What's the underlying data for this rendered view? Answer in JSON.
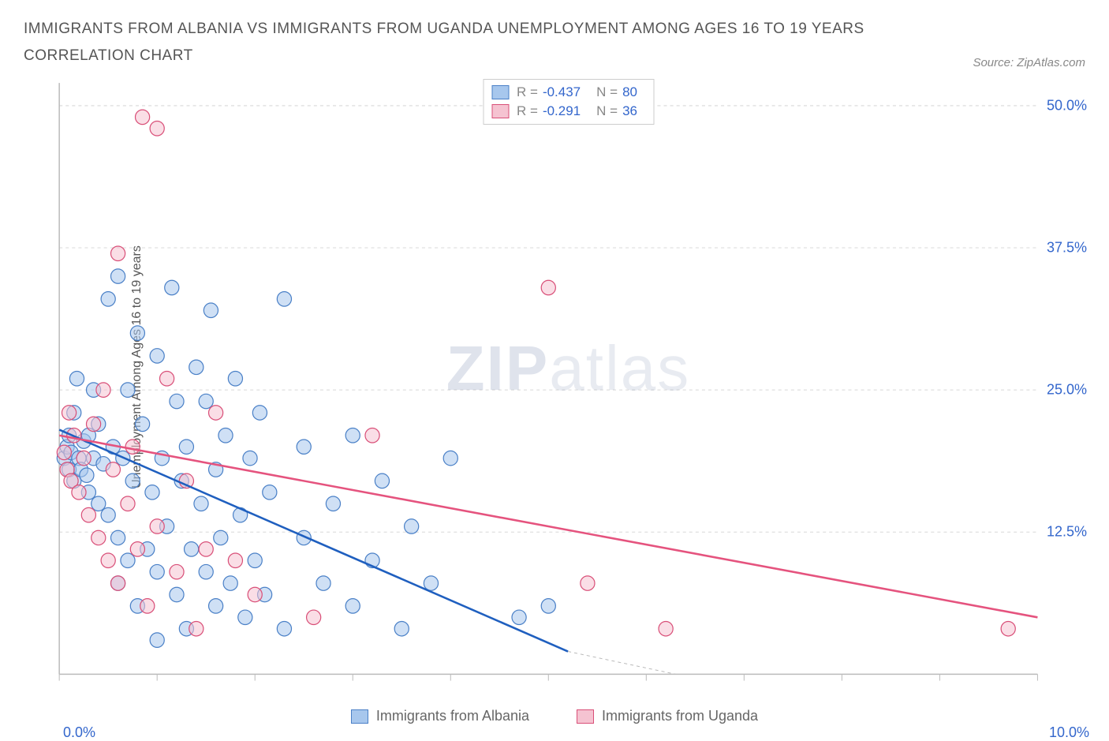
{
  "title": "IMMIGRANTS FROM ALBANIA VS IMMIGRANTS FROM UGANDA UNEMPLOYMENT AMONG AGES 16 TO 19 YEARS CORRELATION CHART",
  "source": "Source: ZipAtlas.com",
  "ylabel": "Unemployment Among Ages 16 to 19 years",
  "watermark_bold": "ZIP",
  "watermark_light": "atlas",
  "chart": {
    "type": "scatter",
    "xlim": [
      0,
      10
    ],
    "ylim": [
      0,
      52
    ],
    "x_ticks": [
      0,
      1,
      2,
      3,
      4,
      5,
      6,
      7,
      8,
      9,
      10
    ],
    "x_tick_labels_shown": {
      "0": "0.0%",
      "10": "10.0%"
    },
    "y_gridlines": [
      12.5,
      25,
      37.5,
      50
    ],
    "y_tick_labels": {
      "12.5": "12.5%",
      "25": "25.0%",
      "37.5": "37.5%",
      "50": "50.0%"
    },
    "grid_color": "#d8d8d8",
    "grid_dash": "4,4",
    "axis_color": "#bbbbbb",
    "background_color": "#ffffff",
    "marker_radius": 9,
    "marker_opacity": 0.55,
    "series": [
      {
        "name": "Immigrants from Albania",
        "color_fill": "#a7c7ed",
        "color_stroke": "#4a80c7",
        "line_color": "#1f5fbf",
        "line_width": 2.5,
        "R": "-0.437",
        "N": "80",
        "trend": {
          "x1": 0,
          "y1": 21.5,
          "x2": 5.2,
          "y2": 2.0
        },
        "trend_ext": {
          "x1": 5.2,
          "y1": 2.0,
          "x2": 6.3,
          "y2": -2.0
        },
        "points": [
          [
            0.05,
            19
          ],
          [
            0.08,
            20
          ],
          [
            0.1,
            18
          ],
          [
            0.1,
            21
          ],
          [
            0.12,
            19.5
          ],
          [
            0.15,
            23
          ],
          [
            0.15,
            17
          ],
          [
            0.18,
            26
          ],
          [
            0.2,
            19
          ],
          [
            0.22,
            18
          ],
          [
            0.25,
            20.5
          ],
          [
            0.28,
            17.5
          ],
          [
            0.3,
            21
          ],
          [
            0.3,
            16
          ],
          [
            0.35,
            25
          ],
          [
            0.35,
            19
          ],
          [
            0.4,
            15
          ],
          [
            0.4,
            22
          ],
          [
            0.45,
            18.5
          ],
          [
            0.5,
            33
          ],
          [
            0.5,
            14
          ],
          [
            0.55,
            20
          ],
          [
            0.6,
            35
          ],
          [
            0.6,
            12
          ],
          [
            0.6,
            8
          ],
          [
            0.65,
            19
          ],
          [
            0.7,
            25
          ],
          [
            0.7,
            10
          ],
          [
            0.75,
            17
          ],
          [
            0.8,
            30
          ],
          [
            0.8,
            6
          ],
          [
            0.85,
            22
          ],
          [
            0.9,
            11
          ],
          [
            0.95,
            16
          ],
          [
            1.0,
            28
          ],
          [
            1.0,
            9
          ],
          [
            1.0,
            3
          ],
          [
            1.05,
            19
          ],
          [
            1.1,
            13
          ],
          [
            1.15,
            34
          ],
          [
            1.2,
            7
          ],
          [
            1.2,
            24
          ],
          [
            1.25,
            17
          ],
          [
            1.3,
            4
          ],
          [
            1.3,
            20
          ],
          [
            1.35,
            11
          ],
          [
            1.4,
            27
          ],
          [
            1.45,
            15
          ],
          [
            1.5,
            9
          ],
          [
            1.5,
            24
          ],
          [
            1.55,
            32
          ],
          [
            1.6,
            6
          ],
          [
            1.6,
            18
          ],
          [
            1.65,
            12
          ],
          [
            1.7,
            21
          ],
          [
            1.75,
            8
          ],
          [
            1.8,
            26
          ],
          [
            1.85,
            14
          ],
          [
            1.9,
            5
          ],
          [
            1.95,
            19
          ],
          [
            2.0,
            10
          ],
          [
            2.05,
            23
          ],
          [
            2.1,
            7
          ],
          [
            2.15,
            16
          ],
          [
            2.3,
            33
          ],
          [
            2.3,
            4
          ],
          [
            2.5,
            12
          ],
          [
            2.5,
            20
          ],
          [
            2.7,
            8
          ],
          [
            2.8,
            15
          ],
          [
            3.0,
            6
          ],
          [
            3.0,
            21
          ],
          [
            3.2,
            10
          ],
          [
            3.3,
            17
          ],
          [
            3.5,
            4
          ],
          [
            3.6,
            13
          ],
          [
            3.8,
            8
          ],
          [
            4.0,
            19
          ],
          [
            4.7,
            5
          ],
          [
            5.0,
            6
          ]
        ]
      },
      {
        "name": "Immigrants from Uganda",
        "color_fill": "#f5c3d1",
        "color_stroke": "#d94f78",
        "line_color": "#e5537e",
        "line_width": 2.5,
        "R": "-0.291",
        "N": "36",
        "trend": {
          "x1": 0,
          "y1": 21.0,
          "x2": 10,
          "y2": 5.0
        },
        "points": [
          [
            0.05,
            19.5
          ],
          [
            0.08,
            18
          ],
          [
            0.1,
            23
          ],
          [
            0.12,
            17
          ],
          [
            0.15,
            21
          ],
          [
            0.2,
            16
          ],
          [
            0.25,
            19
          ],
          [
            0.3,
            14
          ],
          [
            0.35,
            22
          ],
          [
            0.4,
            12
          ],
          [
            0.45,
            25
          ],
          [
            0.5,
            10
          ],
          [
            0.55,
            18
          ],
          [
            0.6,
            37
          ],
          [
            0.6,
            8
          ],
          [
            0.7,
            15
          ],
          [
            0.75,
            20
          ],
          [
            0.8,
            11
          ],
          [
            0.85,
            49
          ],
          [
            0.9,
            6
          ],
          [
            1.0,
            48
          ],
          [
            1.0,
            13
          ],
          [
            1.1,
            26
          ],
          [
            1.2,
            9
          ],
          [
            1.3,
            17
          ],
          [
            1.4,
            4
          ],
          [
            1.5,
            11
          ],
          [
            1.6,
            23
          ],
          [
            1.8,
            10
          ],
          [
            2.0,
            7
          ],
          [
            2.6,
            5
          ],
          [
            3.2,
            21
          ],
          [
            5.0,
            34
          ],
          [
            5.4,
            8
          ],
          [
            6.2,
            4
          ],
          [
            9.7,
            4
          ]
        ]
      }
    ]
  },
  "legend_top_labels": {
    "R": "R =",
    "N": "N ="
  },
  "bottom_legend": [
    {
      "label": "Immigrants from Albania",
      "fill": "#a7c7ed",
      "stroke": "#4a80c7"
    },
    {
      "label": "Immigrants from Uganda",
      "fill": "#f5c3d1",
      "stroke": "#d94f78"
    }
  ]
}
